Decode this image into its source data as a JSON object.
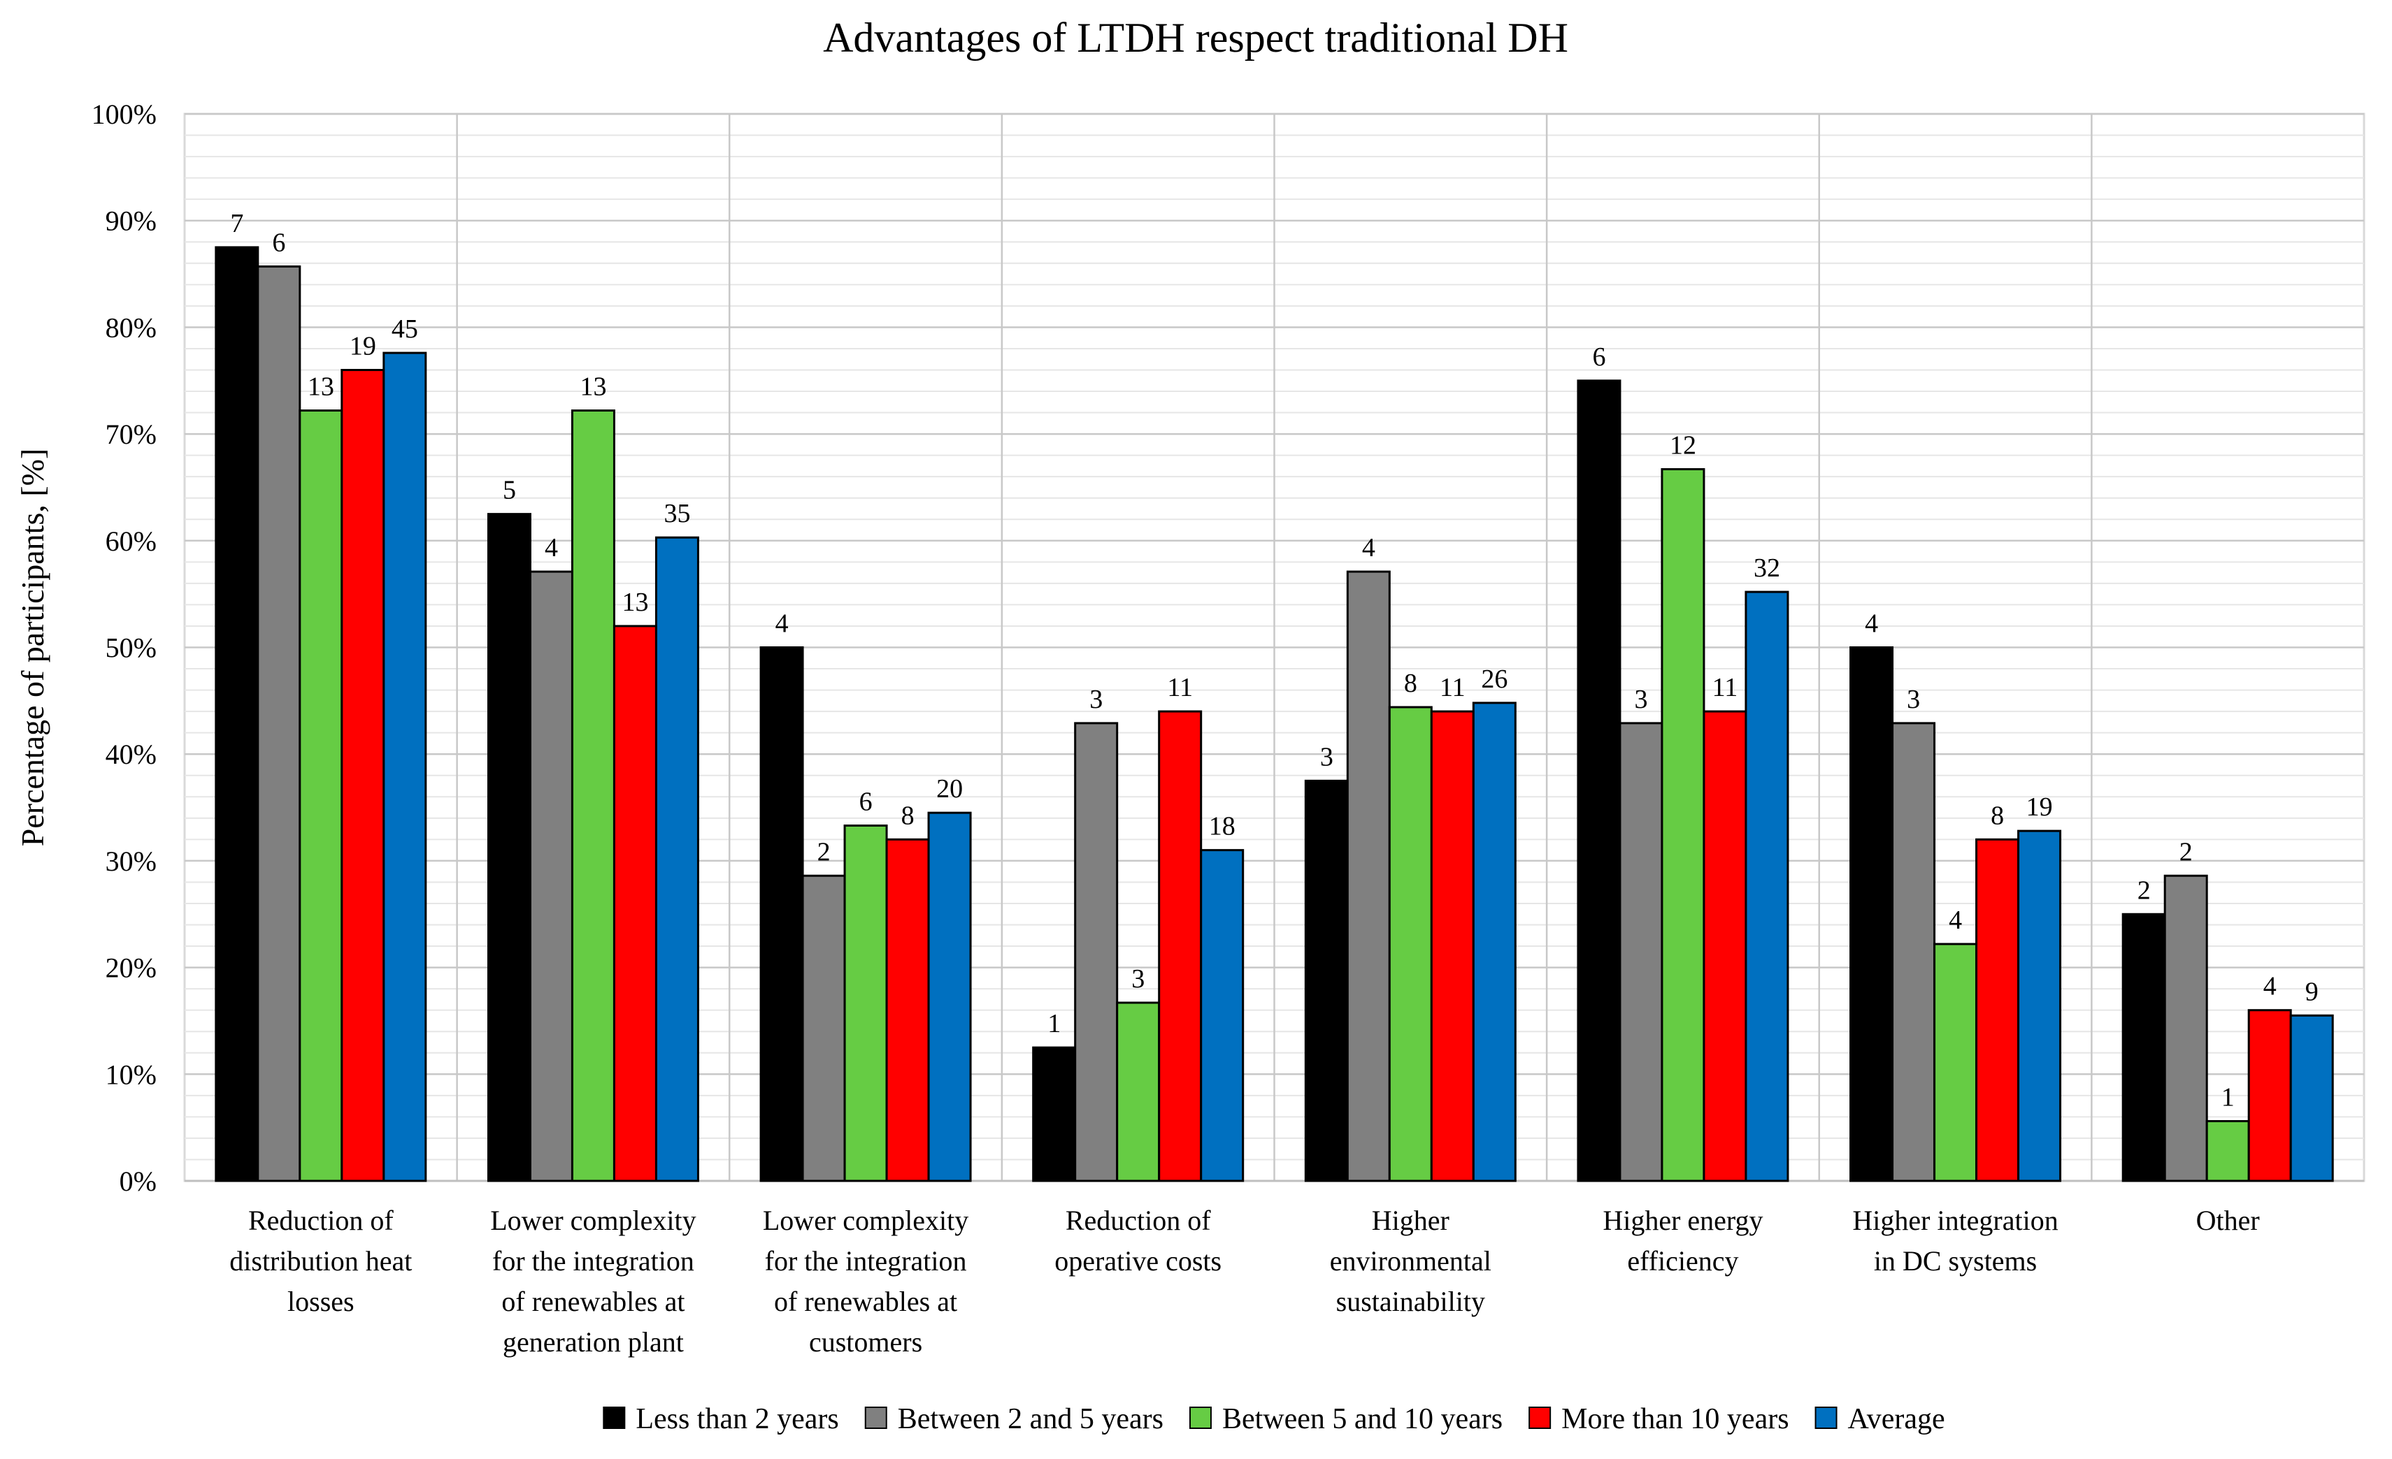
{
  "chart_data": {
    "type": "bar",
    "title": "Advantages of LTDH respect traditional DH",
    "xlabel": "",
    "ylabel": "Percentage of participants, [%]",
    "ylim": [
      0,
      100
    ],
    "yticks": [
      "0%",
      "10%",
      "20%",
      "30%",
      "40%",
      "50%",
      "60%",
      "70%",
      "80%",
      "90%",
      "100%"
    ],
    "grid": true,
    "legend_position": "bottom",
    "categories": [
      [
        "Reduction of",
        "distribution heat",
        "losses"
      ],
      [
        "Lower complexity",
        "for the integration",
        "of renewables at",
        "generation plant"
      ],
      [
        "Lower complexity",
        "for the integration",
        "of renewables at",
        "customers"
      ],
      [
        "Reduction of",
        "operative costs"
      ],
      [
        "Higher",
        "environmental",
        "sustainability"
      ],
      [
        "Higher energy",
        "efficiency"
      ],
      [
        "Higher integration",
        "in DC systems"
      ],
      [
        "Other"
      ]
    ],
    "series": [
      {
        "name": "Less than 2 years",
        "color": "#000000",
        "values": [
          87.5,
          62.5,
          50.0,
          12.5,
          37.5,
          75.0,
          50.0,
          25.0
        ],
        "labels": [
          "7",
          "5",
          "4",
          "1",
          "3",
          "6",
          "4",
          "2"
        ]
      },
      {
        "name": "Between 2 and 5 years",
        "color": "#808080",
        "values": [
          85.7,
          57.1,
          28.6,
          42.9,
          57.1,
          42.9,
          42.9,
          28.6
        ],
        "labels": [
          "6",
          "4",
          "2",
          "3",
          "4",
          "3",
          "3",
          "2"
        ]
      },
      {
        "name": "Between 5 and 10 years",
        "color": "#66CC44",
        "values": [
          72.2,
          72.2,
          33.3,
          16.7,
          44.4,
          66.7,
          22.2,
          5.6
        ],
        "labels": [
          "13",
          "13",
          "6",
          "3",
          "8",
          "12",
          "4",
          "1"
        ]
      },
      {
        "name": "More than 10 years",
        "color": "#FF0000",
        "values": [
          76.0,
          52.0,
          32.0,
          44.0,
          44.0,
          44.0,
          32.0,
          16.0
        ],
        "labels": [
          "19",
          "13",
          "8",
          "11",
          "11",
          "11",
          "8",
          "4"
        ]
      },
      {
        "name": "Average",
        "color": "#0070C0",
        "values": [
          77.6,
          60.3,
          34.5,
          31.0,
          44.8,
          55.2,
          32.8,
          15.5
        ],
        "labels": [
          "45",
          "35",
          "20",
          "18",
          "26",
          "32",
          "19",
          "9"
        ]
      }
    ]
  }
}
